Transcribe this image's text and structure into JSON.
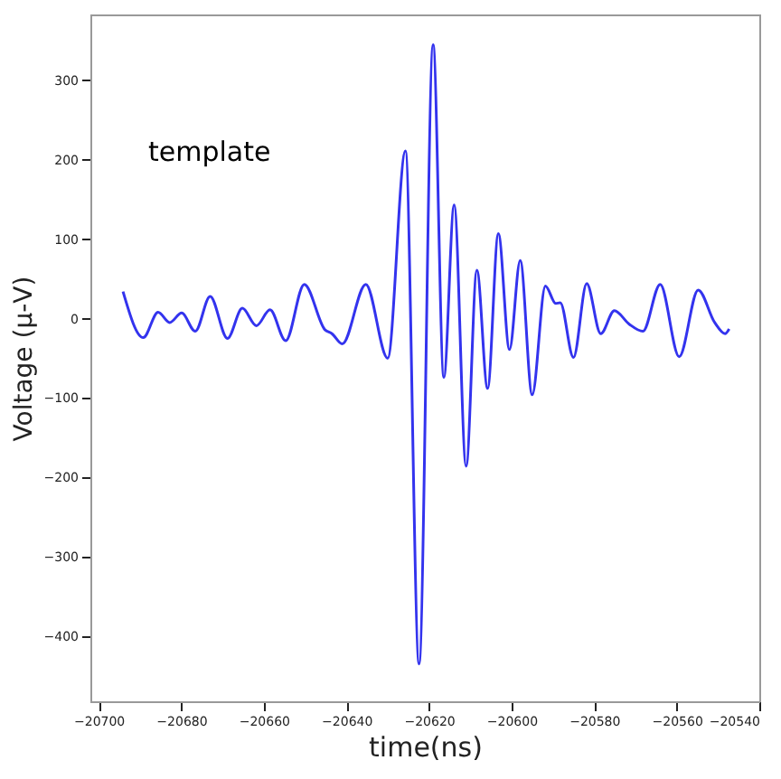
{
  "chart_data": {
    "type": "line",
    "xlabel": "time(ns)",
    "ylabel": "Voltage (μ-V)",
    "annotations": [
      "template"
    ],
    "xlim": [
      -20702,
      -20540
    ],
    "xticks": [
      -20700,
      -20680,
      -20660,
      -20640,
      -20620,
      -20600,
      -20580,
      -20560,
      -20540
    ],
    "ylim": [
      -482,
      383
    ],
    "yticks": [
      -400,
      -300,
      -200,
      -100,
      0,
      100,
      200,
      300
    ],
    "grid": false,
    "line_style": "solid",
    "series": [
      {
        "color": "#3333ee",
        "x": [
          -20694.1,
          -20689.2,
          -20685.6,
          -20682.8,
          -20679.9,
          -20676.6,
          -20673.0,
          -20668.8,
          -20665.2,
          -20661.8,
          -20658.5,
          -20654.7,
          -20650.2,
          -20645.2,
          -20643.5,
          -20641.0,
          -20635.3,
          -20630.0,
          -20625.7,
          -20622.4,
          -20619.0,
          -20616.4,
          -20613.9,
          -20611.0,
          -20608.4,
          -20605.8,
          -20603.2,
          -20600.5,
          -20597.9,
          -20595.0,
          -20591.8,
          -20589.3,
          -20588.2,
          -20585.0,
          -20581.8,
          -20578.4,
          -20575.1,
          -20571.5,
          -20568.2,
          -20564.0,
          -20559.4,
          -20554.8,
          -20550.8,
          -20548.3,
          -20547.3
        ],
        "values": [
          34,
          -24,
          8,
          -5,
          7,
          -16,
          28,
          -25,
          13,
          -9,
          11,
          -28,
          43,
          -14,
          -19,
          -32,
          43,
          -50,
          211,
          -435,
          345,
          -74,
          143,
          -186,
          61,
          -88,
          107,
          -39,
          73,
          -96,
          41,
          19,
          20,
          -49,
          44,
          -19,
          10,
          -7,
          -16,
          43,
          -48,
          36,
          -5,
          -19,
          -13
        ]
      }
    ]
  }
}
